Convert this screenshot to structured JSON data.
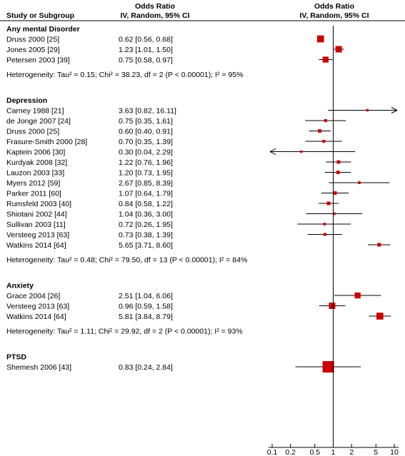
{
  "chart_data": {
    "type": "forest",
    "header": {
      "col1": "Study or Subgroup",
      "col2_title": "Odds Ratio",
      "col2_sub": "IV, Random, 95% CI",
      "col3_title": "Odds Ratio",
      "col3_sub": "IV, Random, 95% CI"
    },
    "x_scale": "log",
    "xlim": [
      0.1,
      10
    ],
    "x_ticks": [
      0.1,
      0.2,
      0.5,
      1,
      2,
      5,
      10
    ],
    "x_tick_labels": [
      "0.1",
      "0.2",
      "0.5",
      "1",
      "2",
      "5",
      "10"
    ],
    "groups": [
      {
        "name": "Any mental Disorder",
        "heterogeneity": "Heterogeneity: Tau² = 0.15; Chi² = 38.23, df = 2 (P < 0.00001); I² = 95%",
        "studies": [
          {
            "study": "Druss 2000 [25]",
            "ci_text": "0.62 [0.56, 0.68]",
            "or": 0.62,
            "lo": 0.56,
            "hi": 0.68,
            "weight": 0.55
          },
          {
            "study": "Jones 2005 [29]",
            "ci_text": "1.23 [1.01, 1.50]",
            "or": 1.23,
            "lo": 1.01,
            "hi": 1.5,
            "weight": 0.5
          },
          {
            "study": "Petersen 2003 [39]",
            "ci_text": "0.75 [0.58, 0.97]",
            "or": 0.75,
            "lo": 0.58,
            "hi": 0.97,
            "weight": 0.45
          }
        ]
      },
      {
        "name": "Depression",
        "heterogeneity": "Heterogeneity: Tau² = 0.48; Chi² = 79.50, df = 13 (P < 0.00001); I² = 84%",
        "studies": [
          {
            "study": "Carney 1988 [21]",
            "ci_text": "3.63 [0.82, 16.11]",
            "or": 3.63,
            "lo": 0.82,
            "hi": 16.11,
            "weight": 0.1
          },
          {
            "study": "de Jonge 2007 [24]",
            "ci_text": "0.75 [0.35, 1.61]",
            "or": 0.75,
            "lo": 0.35,
            "hi": 1.61,
            "weight": 0.15
          },
          {
            "study": "Druss 2000 [25]",
            "ci_text": "0.60 [0.40, 0.91]",
            "or": 0.6,
            "lo": 0.4,
            "hi": 0.91,
            "weight": 0.2
          },
          {
            "study": "Frasure-Smith 2000 [28]",
            "ci_text": "0.70 [0.35, 1.39]",
            "or": 0.7,
            "lo": 0.35,
            "hi": 1.39,
            "weight": 0.15
          },
          {
            "study": "Kaptein 2006 [30]",
            "ci_text": "0.30 [0.04, 2.29]",
            "or": 0.3,
            "lo": 0.04,
            "hi": 2.29,
            "weight": 0.1
          },
          {
            "study": "Kurdyak 2008 [32]",
            "ci_text": "1.22 [0.76, 1.96]",
            "or": 1.22,
            "lo": 0.76,
            "hi": 1.96,
            "weight": 0.2
          },
          {
            "study": "Lauzon 2003 [33]",
            "ci_text": "1.20 [0.73, 1.95]",
            "or": 1.2,
            "lo": 0.73,
            "hi": 1.95,
            "weight": 0.2
          },
          {
            "study": "Myers 2012 [59]",
            "ci_text": "2.67 [0.85, 8.39]",
            "or": 2.67,
            "lo": 0.85,
            "hi": 8.39,
            "weight": 0.12
          },
          {
            "study": "Parker 2011 [60]",
            "ci_text": "1.07 [0.64, 1.79]",
            "or": 1.07,
            "lo": 0.64,
            "hi": 1.79,
            "weight": 0.2
          },
          {
            "study": "Rumsfeld 2003 [40]",
            "ci_text": "0.84 [0.58, 1.22]",
            "or": 0.84,
            "lo": 0.58,
            "hi": 1.22,
            "weight": 0.22
          },
          {
            "study": "Shiotani 2002 [44]",
            "ci_text": "1.04 [0.36, 3.00]",
            "or": 1.04,
            "lo": 0.36,
            "hi": 3.0,
            "weight": 0.12
          },
          {
            "study": "Sullivan 2003 [11]",
            "ci_text": "0.72 [0.26, 1.95]",
            "or": 0.72,
            "lo": 0.26,
            "hi": 1.95,
            "weight": 0.12
          },
          {
            "study": "Versteeg 2013 [63]",
            "ci_text": "0.73 [0.38, 1.39]",
            "or": 0.73,
            "lo": 0.38,
            "hi": 1.39,
            "weight": 0.15
          },
          {
            "study": "Watkins 2014 [64]",
            "ci_text": "5.65 [3.71, 8.60]",
            "or": 5.65,
            "lo": 3.71,
            "hi": 8.6,
            "weight": 0.22
          }
        ]
      },
      {
        "name": "Anxiety",
        "heterogeneity": "Heterogeneity: Tau² = 1.11; Chi² = 29.92, df = 2 (P < 0.00001); I² = 93%",
        "studies": [
          {
            "study": "Grace 2004 [26]",
            "ci_text": "2.51 [1.04, 6.06]",
            "or": 2.51,
            "lo": 1.04,
            "hi": 6.06,
            "weight": 0.45
          },
          {
            "study": "Versteeg 2013 [63]",
            "ci_text": "0.96 [0.59, 1.58]",
            "or": 0.96,
            "lo": 0.59,
            "hi": 1.58,
            "weight": 0.5
          },
          {
            "study": "Watkins 2014 [64]",
            "ci_text": "5.81 [3.84, 8.79]",
            "or": 5.81,
            "lo": 3.84,
            "hi": 8.79,
            "weight": 0.55
          }
        ]
      },
      {
        "name": "PTSD",
        "heterogeneity": "",
        "studies": [
          {
            "study": "Shemesh 2006 [43]",
            "ci_text": "0.83 [0.24, 2.84]",
            "or": 0.83,
            "lo": 0.24,
            "hi": 2.84,
            "weight": 1.0
          }
        ]
      }
    ],
    "colors": {
      "marker": "#cc0000",
      "line": "#000000"
    }
  }
}
